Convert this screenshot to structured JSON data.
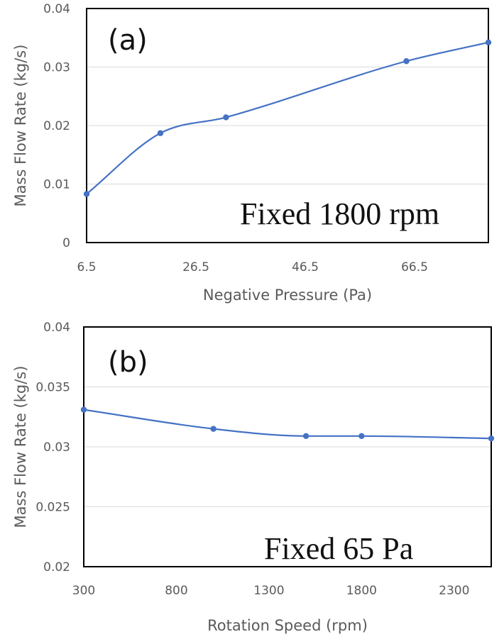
{
  "chart_data": [
    {
      "type": "line",
      "panel_label": "(a)",
      "annotation": "Fixed 1800 rpm",
      "xlabel": "Negative Pressure (Pa)",
      "ylabel": "Mass Flow Rate (kg/s)",
      "xlim": [
        6.5,
        80
      ],
      "ylim": [
        0,
        0.04
      ],
      "x_ticks": [
        "6.5",
        "26.5",
        "46.5",
        "66.5"
      ],
      "x_tick_values": [
        6.5,
        26.5,
        46.5,
        66.5
      ],
      "y_ticks": [
        "0",
        "0.01",
        "0.02",
        "0.03",
        "0.04"
      ],
      "y_tick_values": [
        0,
        0.01,
        0.02,
        0.03,
        0.04
      ],
      "grid": true,
      "series": [
        {
          "name": "Fixed 1800 rpm",
          "x": [
            6.5,
            20,
            32,
            65,
            80
          ],
          "y": [
            0.0083,
            0.0187,
            0.0214,
            0.031,
            0.0342
          ]
        }
      ]
    },
    {
      "type": "line",
      "panel_label": "(b)",
      "annotation": "Fixed 65 Pa",
      "xlabel": "Rotation Speed (rpm)",
      "ylabel": "Mass Flow Rate (kg/s)",
      "xlim": [
        300,
        2500
      ],
      "ylim": [
        0.02,
        0.04
      ],
      "x_ticks": [
        "300",
        "800",
        "1300",
        "1800",
        "2300"
      ],
      "x_tick_values": [
        300,
        800,
        1300,
        1800,
        2300
      ],
      "y_ticks": [
        "0.02",
        "0.025",
        "0.03",
        "0.035",
        "0.04"
      ],
      "y_tick_values": [
        0.02,
        0.025,
        0.03,
        0.035,
        0.04
      ],
      "grid": true,
      "series": [
        {
          "name": "Fixed 65 Pa",
          "x": [
            300,
            1000,
            1500,
            1800,
            2500
          ],
          "y": [
            0.0331,
            0.0315,
            0.0309,
            0.0309,
            0.0307
          ]
        }
      ]
    }
  ],
  "colors": {
    "line": "#4472c4",
    "grid": "#d9d9d9",
    "frame": "#000000"
  }
}
